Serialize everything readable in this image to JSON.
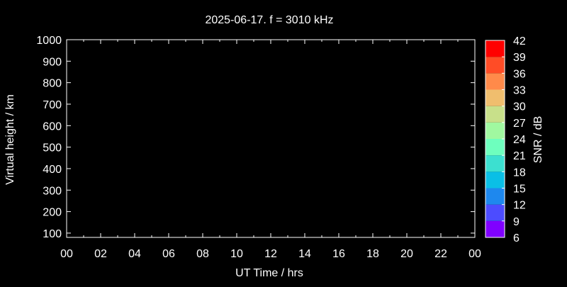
{
  "chart_data": {
    "type": "heatmap",
    "title": "2025-06-17. f = 3010 kHz",
    "xlabel": "UT Time / hrs",
    "ylabel": "Virtual height / km",
    "xlim": [
      0,
      24
    ],
    "ylim": [
      80,
      1000
    ],
    "xticks": [
      "00",
      "02",
      "04",
      "06",
      "08",
      "10",
      "12",
      "14",
      "16",
      "18",
      "20",
      "22",
      "00"
    ],
    "yticks": [
      100,
      200,
      300,
      400,
      500,
      600,
      700,
      800,
      900,
      1000
    ],
    "grid": false,
    "points": [],
    "colorbar": {
      "label": "SNR / dB",
      "range": [
        6,
        42
      ],
      "ticks": [
        6,
        9,
        12,
        15,
        18,
        21,
        24,
        27,
        30,
        33,
        36,
        39,
        42
      ],
      "colors": [
        "#8000ff",
        "#4c4cff",
        "#1e88ee",
        "#0abfe6",
        "#3ce0d0",
        "#6effbe",
        "#a0f8a0",
        "#c8e08a",
        "#f0be6e",
        "#ff8a4a",
        "#ff4c26",
        "#ff0000"
      ]
    }
  }
}
